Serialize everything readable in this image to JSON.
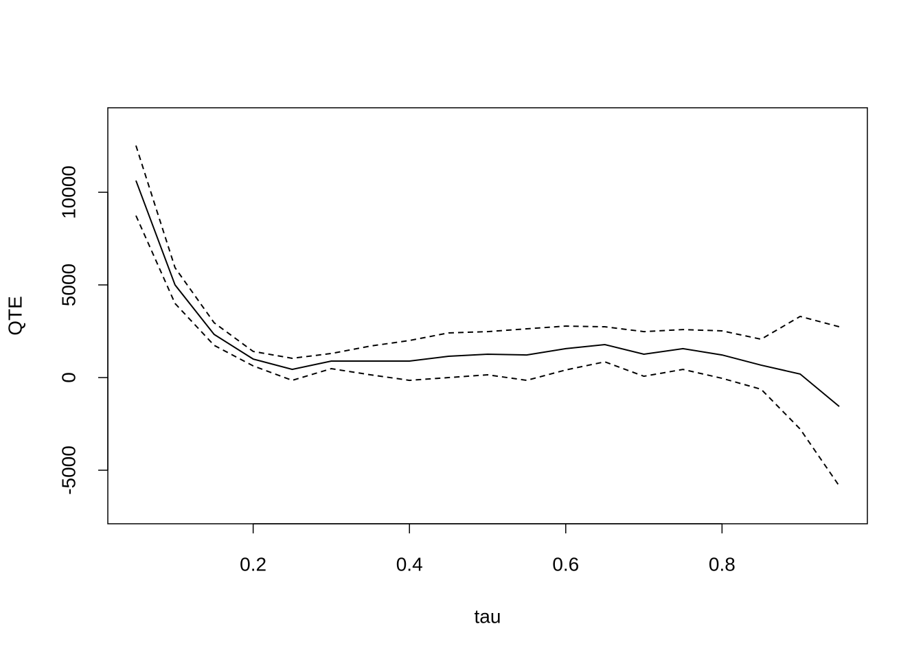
{
  "chart_data": {
    "type": "line",
    "x_label": "tau",
    "y_label": "QTE",
    "x": [
      0.05,
      0.1,
      0.15,
      0.2,
      0.25,
      0.3,
      0.35,
      0.4,
      0.45,
      0.5,
      0.55,
      0.6,
      0.65,
      0.7,
      0.75,
      0.8,
      0.85,
      0.9,
      0.95
    ],
    "series": [
      {
        "color": "#000000",
        "linestyle": "solid",
        "values": [
          10630,
          5000,
          2330,
          1000,
          440,
          890,
          890,
          890,
          1150,
          1260,
          1220,
          1560,
          1780,
          1260,
          1560,
          1220,
          670,
          190,
          -1560
        ]
      },
      {
        "color": "#000000",
        "linestyle": "dashed",
        "values": [
          12520,
          5930,
          2960,
          1410,
          1040,
          1300,
          1700,
          2000,
          2410,
          2480,
          2630,
          2780,
          2740,
          2480,
          2590,
          2520,
          2070,
          3300,
          2740
        ]
      },
      {
        "color": "#000000",
        "linestyle": "dashed",
        "values": [
          8740,
          4000,
          1740,
          630,
          -150,
          480,
          150,
          -150,
          0,
          150,
          -150,
          410,
          850,
          70,
          440,
          -40,
          -630,
          -2780,
          -5850
        ]
      }
    ],
    "xlim": [
      0.014,
      0.986
    ],
    "ylim": [
      -7890,
      14560
    ],
    "xticks": [
      0.2,
      0.4,
      0.6,
      0.8
    ],
    "yticks": [
      -5000,
      0,
      5000,
      10000
    ]
  }
}
